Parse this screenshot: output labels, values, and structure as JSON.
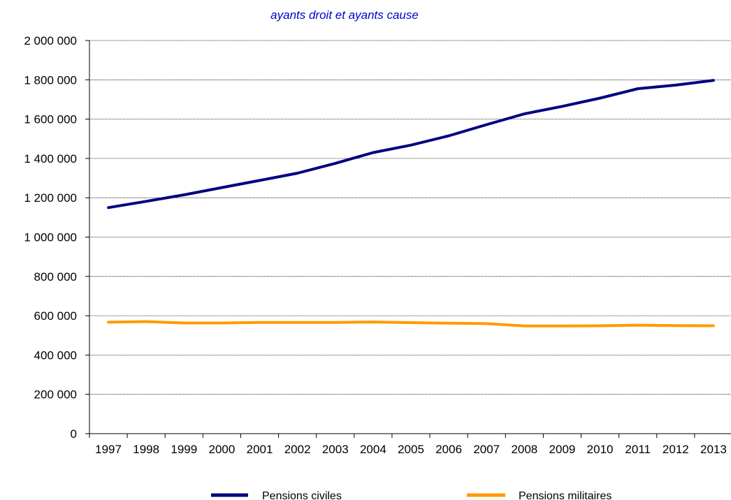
{
  "chart_data": {
    "type": "line",
    "title": "",
    "subtitle": "ayants droit et ayants cause",
    "xlabel": "",
    "ylabel": "",
    "x": [
      "1997",
      "1998",
      "1999",
      "2000",
      "2001",
      "2002",
      "2003",
      "2004",
      "2005",
      "2006",
      "2007",
      "2008",
      "2009",
      "2010",
      "2011",
      "2012",
      "2013"
    ],
    "ylim": [
      0,
      2000000
    ],
    "y_ticks": [
      0,
      200000,
      400000,
      600000,
      800000,
      1000000,
      1200000,
      1400000,
      1600000,
      1800000,
      2000000
    ],
    "y_tick_labels": [
      "0",
      "200 000",
      "400 000",
      "600 000",
      "800 000",
      "1 000 000",
      "1 200 000",
      "1 400 000",
      "1 600 000",
      "1 800 000",
      "2 000 000"
    ],
    "grid": true,
    "legend_position": "bottom",
    "series": [
      {
        "name": "Pensions civiles",
        "color": "#000080",
        "values": [
          1150000,
          1182000,
          1215000,
          1252000,
          1288000,
          1325000,
          1375000,
          1430000,
          1468000,
          1515000,
          1572000,
          1627000,
          1665000,
          1707000,
          1755000,
          1773000,
          1797000
        ]
      },
      {
        "name": "Pensions militaires",
        "color": "#ff9900",
        "values": [
          567000,
          570000,
          563000,
          563000,
          566000,
          566000,
          566000,
          568000,
          565000,
          562000,
          560000,
          548000,
          548000,
          549000,
          552000,
          550000,
          549000
        ]
      }
    ]
  }
}
